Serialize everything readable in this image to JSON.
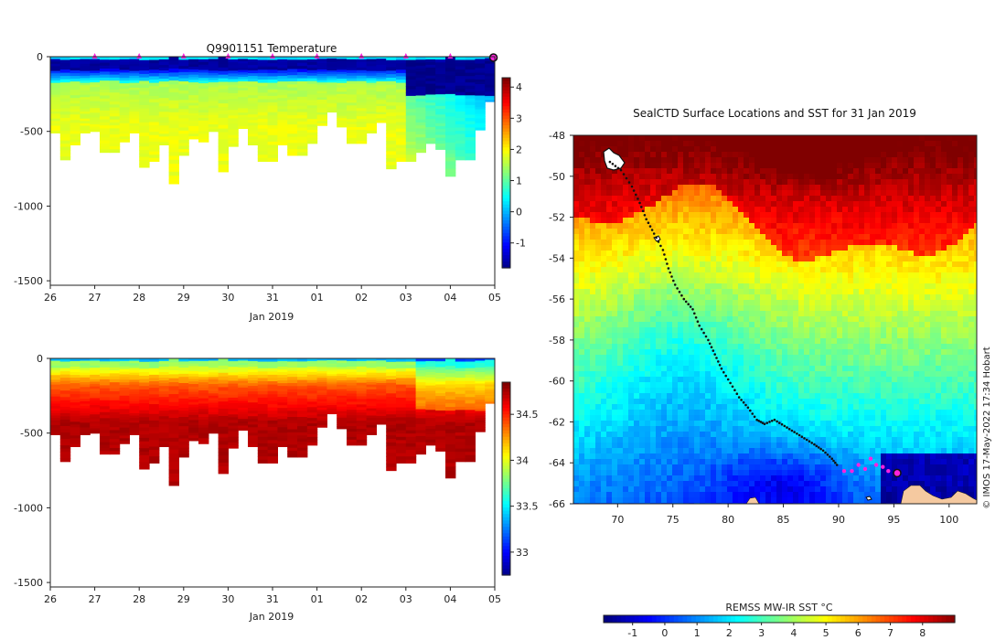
{
  "colors": {
    "background": "#ffffff",
    "land": "#f5c9a0",
    "track": "#111111",
    "highlight": "#ff22dd",
    "axis": "#222222"
  },
  "chart_data": [
    {
      "id": "temperature_section",
      "type": "heatmap",
      "title": "Q9901151  Temperature",
      "xlabel": "Jan 2019",
      "ylabel": "",
      "x_tick_labels": [
        "26",
        "27",
        "28",
        "29",
        "30",
        "31",
        "01",
        "02",
        "03",
        "04",
        "05"
      ],
      "y_ticks": [
        0,
        -500,
        -1000,
        -1500
      ],
      "ylim": [
        -1530,
        0
      ],
      "colorbar": {
        "ticks": [
          4,
          3,
          2,
          1,
          0,
          -1
        ],
        "range": [
          -1.8,
          4.3
        ],
        "colormap": "jet"
      },
      "profile_bottom_depths": [
        510,
        690,
        590,
        510,
        500,
        640,
        640,
        570,
        510,
        740,
        700,
        590,
        850,
        660,
        550,
        570,
        500,
        770,
        600,
        480,
        590,
        700,
        700,
        590,
        660,
        660,
        580,
        460,
        370,
        470,
        580,
        580,
        510,
        440,
        750,
        700,
        700,
        640,
        580,
        620,
        800,
        690,
        690,
        490,
        300
      ],
      "surface_markers_at_days": [
        1,
        2,
        3,
        4,
        5,
        6,
        7,
        8,
        9
      ],
      "last_profile_marker_day": 9.97
    },
    {
      "id": "salinity_section",
      "type": "heatmap",
      "title": "",
      "xlabel": "Jan 2019",
      "x_tick_labels": [
        "26",
        "27",
        "28",
        "29",
        "30",
        "31",
        "01",
        "02",
        "03",
        "04",
        "05"
      ],
      "y_ticks": [
        0,
        -500,
        -1000,
        -1500
      ],
      "ylim": [
        -1530,
        0
      ],
      "colorbar": {
        "ticks": [
          34.5,
          34,
          33.5,
          33
        ],
        "range": [
          32.75,
          34.85
        ],
        "colormap": "jet"
      },
      "profile_bottom_depths": [
        510,
        690,
        590,
        510,
        500,
        640,
        640,
        570,
        510,
        740,
        700,
        590,
        850,
        660,
        550,
        570,
        500,
        770,
        600,
        480,
        590,
        700,
        700,
        590,
        660,
        660,
        580,
        460,
        370,
        470,
        580,
        580,
        510,
        440,
        750,
        700,
        700,
        640,
        580,
        620,
        800,
        690,
        690,
        490,
        300
      ]
    },
    {
      "id": "sst_map",
      "type": "heatmap",
      "title": "SealCTD Surface Locations and SST for 31 Jan 2019",
      "x_tick_labels": [
        "70",
        "75",
        "80",
        "85",
        "90",
        "95",
        "100"
      ],
      "x_ticks": [
        70,
        75,
        80,
        85,
        90,
        95,
        100
      ],
      "y_ticks": [
        -48,
        -50,
        -52,
        -54,
        -56,
        -58,
        -60,
        -62,
        -64,
        -66
      ],
      "xlim": [
        66,
        102.5
      ],
      "ylim": [
        -66,
        -48
      ],
      "colorbar": {
        "label": "REMSS MW-IR SST °C",
        "ticks": [
          -1,
          0,
          1,
          2,
          3,
          4,
          5,
          6,
          7,
          8
        ],
        "range": [
          -1.9,
          9
        ]
      },
      "track": [
        [
          69.3,
          -49.3
        ],
        [
          70.3,
          -49.7
        ],
        [
          71.3,
          -50.5
        ],
        [
          72.0,
          -51.3
        ],
        [
          72.6,
          -52.1
        ],
        [
          73.3,
          -52.8
        ],
        [
          74.1,
          -53.6
        ],
        [
          74.6,
          -54.5
        ],
        [
          75.2,
          -55.3
        ],
        [
          76.0,
          -56.0
        ],
        [
          76.8,
          -56.5
        ],
        [
          77.4,
          -57.3
        ],
        [
          78.2,
          -58.0
        ],
        [
          78.8,
          -58.7
        ],
        [
          79.4,
          -59.4
        ],
        [
          80.2,
          -60.1
        ],
        [
          81.0,
          -60.8
        ],
        [
          81.8,
          -61.3
        ],
        [
          82.6,
          -61.9
        ],
        [
          83.3,
          -62.1
        ],
        [
          84.2,
          -61.9
        ],
        [
          85.1,
          -62.2
        ],
        [
          86.0,
          -62.5
        ],
        [
          86.9,
          -62.8
        ],
        [
          87.8,
          -63.1
        ],
        [
          88.6,
          -63.4
        ],
        [
          89.4,
          -63.8
        ],
        [
          90.0,
          -64.2
        ]
      ],
      "track_last_days": [
        [
          90.5,
          -64.4
        ],
        [
          91.2,
          -64.4
        ],
        [
          91.8,
          -64.1
        ],
        [
          92.4,
          -64.3
        ],
        [
          92.9,
          -63.8
        ],
        [
          93.4,
          -64.1
        ],
        [
          94.0,
          -64.2
        ],
        [
          94.5,
          -64.4
        ]
      ],
      "current_position": [
        95.3,
        -64.5
      ]
    }
  ],
  "credit": "© IMOS 17-May-2022 17:34 Hobart"
}
